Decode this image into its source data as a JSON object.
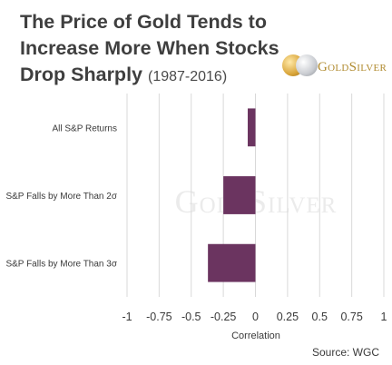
{
  "title": {
    "line1": "The Price of Gold Tends to",
    "line2": "Increase More When Stocks",
    "line3": "Drop Sharply",
    "years": "(1987-2016)"
  },
  "logo": {
    "text": "GoldSilver",
    "icon": "gold-silver-coins-icon"
  },
  "watermark": "GoldSilver",
  "source": "Source: WGC",
  "colors": {
    "bar": "#6b3460",
    "grid": "#d9d9d9",
    "title": "#3f3f3f"
  },
  "chart_data": {
    "type": "bar",
    "orientation": "horizontal",
    "categories": [
      "All S&P Returns",
      "S&P Falls by More Than 2σ",
      "S&P Falls by More Than 3σ"
    ],
    "values": [
      -0.06,
      -0.25,
      -0.37
    ],
    "xlabel": "Correlation",
    "xlim": [
      -1,
      1
    ],
    "xticks": [
      -1,
      -0.75,
      -0.5,
      -0.25,
      0,
      0.25,
      0.5,
      0.75,
      1
    ],
    "xtick_labels": [
      "-1",
      "-0.75",
      "-0.5",
      "-0.25",
      "0",
      "0.25",
      "0.5",
      "0.75",
      "1"
    ],
    "grid": "vertical",
    "legend": "none"
  }
}
